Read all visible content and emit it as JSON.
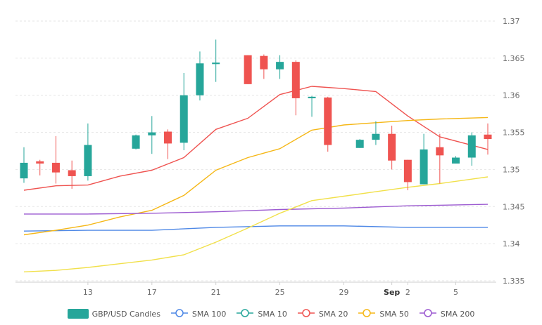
{
  "chart_data": {
    "type": "candlestick",
    "title": "",
    "xlabel": "",
    "ylabel": "",
    "y_axis_position": "right",
    "ylim": [
      1.335,
      1.37
    ],
    "yticks": [
      "1.37",
      "1.365",
      "1.36",
      "1.355",
      "1.35",
      "1.345",
      "1.34",
      "1.335"
    ],
    "x_ticks": [
      {
        "day": 13,
        "label": "13"
      },
      {
        "day": 17,
        "label": "17"
      },
      {
        "day": 21,
        "label": "21"
      },
      {
        "day": 25,
        "label": "25"
      },
      {
        "day": 29,
        "label": "29"
      },
      {
        "day": 32,
        "label": "Sep",
        "bold": true
      },
      {
        "day": 33,
        "label": "2"
      },
      {
        "day": 36,
        "label": "5"
      }
    ],
    "grid": true,
    "legend_position": "bottom",
    "candles_series": {
      "name": "GBP/USD Candles",
      "up_color": "#26a69a",
      "down_color": "#ef5350",
      "data": [
        {
          "day": 9,
          "open": 1.3488,
          "high": 1.353,
          "low": 1.3482,
          "close": 1.3509
        },
        {
          "day": 10,
          "open": 1.3511,
          "high": 1.3513,
          "low": 1.3492,
          "close": 1.3508
        },
        {
          "day": 11,
          "open": 1.3509,
          "high": 1.3545,
          "low": 1.3481,
          "close": 1.3496
        },
        {
          "day": 12,
          "open": 1.3499,
          "high": 1.3512,
          "low": 1.3474,
          "close": 1.3491
        },
        {
          "day": 13,
          "open": 1.3491,
          "high": 1.3562,
          "low": 1.3485,
          "close": 1.3533
        },
        {
          "day": 16,
          "open": 1.3528,
          "high": 1.3547,
          "low": 1.3527,
          "close": 1.3546
        },
        {
          "day": 17,
          "open": 1.3546,
          "high": 1.3572,
          "low": 1.3521,
          "close": 1.355
        },
        {
          "day": 18,
          "open": 1.3551,
          "high": 1.3554,
          "low": 1.3514,
          "close": 1.3535
        },
        {
          "day": 19,
          "open": 1.3536,
          "high": 1.363,
          "low": 1.3526,
          "close": 1.36
        },
        {
          "day": 20,
          "open": 1.36,
          "high": 1.3659,
          "low": 1.3593,
          "close": 1.3643
        },
        {
          "day": 21,
          "open": 1.3642,
          "high": 1.3675,
          "low": 1.3618,
          "close": 1.3644
        },
        {
          "day": 23,
          "open": 1.3654,
          "high": 1.3654,
          "low": 1.3615,
          "close": 1.3615
        },
        {
          "day": 24,
          "open": 1.3653,
          "high": 1.3655,
          "low": 1.3622,
          "close": 1.3635
        },
        {
          "day": 25,
          "open": 1.3635,
          "high": 1.3654,
          "low": 1.3622,
          "close": 1.3645
        },
        {
          "day": 26,
          "open": 1.3645,
          "high": 1.3647,
          "low": 1.3573,
          "close": 1.3596
        },
        {
          "day": 27,
          "open": 1.3596,
          "high": 1.3599,
          "low": 1.3571,
          "close": 1.3598
        },
        {
          "day": 28,
          "open": 1.3597,
          "high": 1.3598,
          "low": 1.3524,
          "close": 1.3533
        },
        {
          "day": 30,
          "open": 1.3529,
          "high": 1.3541,
          "low": 1.3529,
          "close": 1.354
        },
        {
          "day": 31,
          "open": 1.354,
          "high": 1.3565,
          "low": 1.3533,
          "close": 1.3548
        },
        {
          "day": 32,
          "open": 1.3548,
          "high": 1.3559,
          "low": 1.35,
          "close": 1.3512
        },
        {
          "day": 33,
          "open": 1.3513,
          "high": 1.3513,
          "low": 1.3472,
          "close": 1.3483
        },
        {
          "day": 34,
          "open": 1.348,
          "high": 1.3548,
          "low": 1.348,
          "close": 1.3527
        },
        {
          "day": 35,
          "open": 1.353,
          "high": 1.3548,
          "low": 1.3481,
          "close": 1.3519
        },
        {
          "day": 36,
          "open": 1.3508,
          "high": 1.3518,
          "low": 1.3508,
          "close": 1.3516
        },
        {
          "day": 37,
          "open": 1.3516,
          "high": 1.355,
          "low": 1.3505,
          "close": 1.3546
        },
        {
          "day": 38,
          "open": 1.3547,
          "high": 1.3562,
          "low": 1.352,
          "close": 1.3541
        }
      ]
    },
    "series": [
      {
        "name": "SMA 100",
        "color": "#4e88e6",
        "x": [
          9,
          13,
          17,
          21,
          25,
          29,
          33,
          38
        ],
        "values": [
          1.3417,
          1.3418,
          1.3418,
          1.3422,
          1.3424,
          1.3424,
          1.3422,
          1.3422
        ]
      },
      {
        "name": "SMA 10",
        "color": "#26a69a",
        "x": [],
        "values": []
      },
      {
        "name": "SMA 20",
        "color": "#ef5350",
        "x": [
          9,
          11,
          13,
          15,
          17,
          19,
          21,
          23,
          25,
          27,
          29,
          31,
          33,
          35,
          38
        ],
        "values": [
          1.3472,
          1.3478,
          1.3479,
          1.3491,
          1.3499,
          1.3516,
          1.3554,
          1.3569,
          1.3601,
          1.3612,
          1.3609,
          1.3605,
          1.3572,
          1.3544,
          1.3527
        ]
      },
      {
        "name": "SMA 50",
        "color": "#f5b716",
        "x": [
          9,
          11,
          13,
          15,
          17,
          19,
          21,
          23,
          25,
          27,
          29,
          31,
          33,
          35,
          38
        ],
        "values": [
          1.3412,
          1.3418,
          1.3425,
          1.3436,
          1.3445,
          1.3465,
          1.3499,
          1.3516,
          1.3528,
          1.3553,
          1.356,
          1.3563,
          1.3566,
          1.3568,
          1.357
        ]
      },
      {
        "name": "SMA 200",
        "color": "#9b59d0",
        "x": [
          9,
          13,
          17,
          21,
          25,
          29,
          33,
          38
        ],
        "values": [
          1.344,
          1.344,
          1.3441,
          1.3443,
          1.3446,
          1.3448,
          1.3451,
          1.3453
        ]
      },
      {
        "name": "",
        "color": "#f1e04a",
        "x": [
          9,
          11,
          13,
          15,
          17,
          19,
          21,
          23,
          25,
          27,
          29,
          31,
          33,
          35,
          38
        ],
        "values": [
          1.3362,
          1.3364,
          1.3368,
          1.3373,
          1.3378,
          1.3385,
          1.3402,
          1.3421,
          1.3441,
          1.3458,
          1.3464,
          1.347,
          1.3476,
          1.3481,
          1.349
        ]
      }
    ]
  },
  "legend": [
    {
      "name": "GBP/USD Candles",
      "kind": "candle",
      "color": "#26a69a"
    },
    {
      "name": "SMA 100",
      "kind": "line",
      "color": "#4e88e6"
    },
    {
      "name": "SMA 10",
      "kind": "line",
      "color": "#26a69a"
    },
    {
      "name": "SMA 20",
      "kind": "line",
      "color": "#ef5350"
    },
    {
      "name": "SMA 50",
      "kind": "line",
      "color": "#f5b716"
    },
    {
      "name": "SMA 200",
      "kind": "line",
      "color": "#9b59d0"
    }
  ]
}
